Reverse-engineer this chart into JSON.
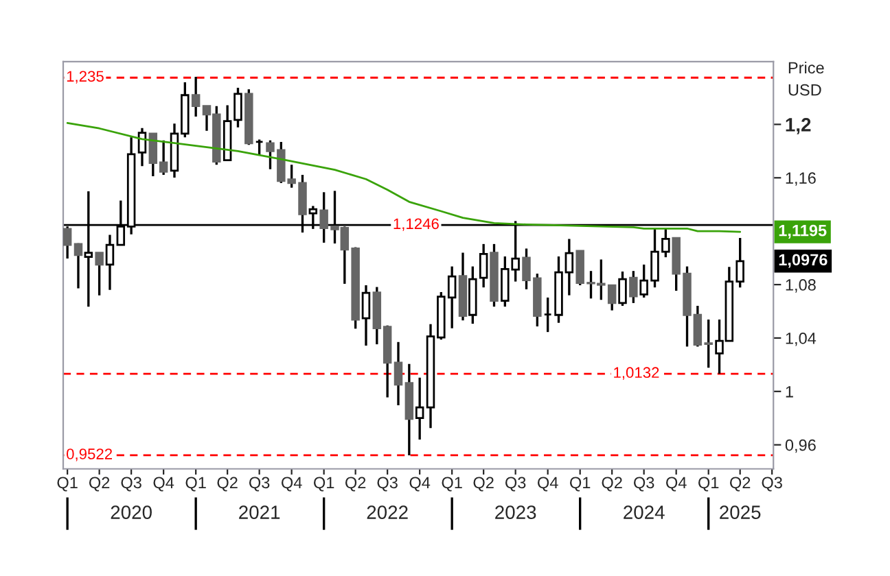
{
  "chart_data": {
    "type": "candlestick",
    "ylabel": "Price\nUSD",
    "x": [
      "2020-01",
      "2020-02",
      "2020-03",
      "2020-04",
      "2020-05",
      "2020-06",
      "2020-07",
      "2020-08",
      "2020-09",
      "2020-10",
      "2020-11",
      "2020-12",
      "2021-01",
      "2021-02",
      "2021-03",
      "2021-04",
      "2021-05",
      "2021-06",
      "2021-07",
      "2021-08",
      "2021-09",
      "2021-10",
      "2021-11",
      "2021-12",
      "2022-01",
      "2022-02",
      "2022-03",
      "2022-04",
      "2022-05",
      "2022-06",
      "2022-07",
      "2022-08",
      "2022-09",
      "2022-10",
      "2022-11",
      "2022-12",
      "2023-01",
      "2023-02",
      "2023-03",
      "2023-04",
      "2023-05",
      "2023-06",
      "2023-07",
      "2023-08",
      "2023-09",
      "2023-10",
      "2023-11",
      "2023-12",
      "2024-01",
      "2024-02",
      "2024-03",
      "2024-04",
      "2024-05",
      "2024-06",
      "2024-07",
      "2024-08",
      "2024-09",
      "2024-10",
      "2024-11",
      "2024-12",
      "2025-01",
      "2025-02",
      "2025-03",
      "2025-04"
    ],
    "ohlc": [
      [
        1.1217,
        1.1235,
        1.0995,
        1.1098
      ],
      [
        1.1104,
        1.111,
        1.0772,
        1.1022
      ],
      [
        1.1008,
        1.1499,
        1.0635,
        1.1039
      ],
      [
        1.1039,
        1.1039,
        1.072,
        1.095
      ],
      [
        1.095,
        1.1173,
        1.0761,
        1.1098
      ],
      [
        1.1098,
        1.143,
        1.1098,
        1.1235
      ],
      [
        1.1235,
        1.1903,
        1.1176,
        1.1777
      ],
      [
        1.179,
        1.1972,
        1.1687,
        1.1937
      ],
      [
        1.1931,
        1.1931,
        1.1612,
        1.1711
      ],
      [
        1.1715,
        1.188,
        1.1622,
        1.1646
      ],
      [
        1.1653,
        1.2006,
        1.1602,
        1.1931
      ],
      [
        1.1931,
        1.2315,
        1.1903,
        1.2219
      ],
      [
        1.2219,
        1.2356,
        1.2058,
        1.2137
      ],
      [
        1.2137,
        1.214,
        1.1952,
        1.2075
      ],
      [
        1.2075,
        1.2137,
        1.1698,
        1.1721
      ],
      [
        1.1732,
        1.2143,
        1.1725,
        1.2024
      ],
      [
        1.2034,
        1.2274,
        1.1978,
        1.2229
      ],
      [
        1.2229,
        1.2263,
        1.1847,
        1.1859
      ],
      [
        1.1869,
        1.1886,
        1.1766,
        1.1869
      ],
      [
        1.1859,
        1.188,
        1.1664,
        1.18
      ],
      [
        1.1808,
        1.1869,
        1.1561,
        1.1577
      ],
      [
        1.1588,
        1.1698,
        1.1526,
        1.1561
      ],
      [
        1.1561,
        1.1622,
        1.119,
        1.1327
      ],
      [
        1.1334,
        1.1389,
        1.1217,
        1.1365
      ],
      [
        1.1355,
        1.1492,
        1.1114,
        1.1224
      ],
      [
        1.1235,
        1.1502,
        1.1108,
        1.1214
      ],
      [
        1.1224,
        1.1235,
        1.0806,
        1.1063
      ],
      [
        1.107,
        1.108,
        1.047,
        1.0538
      ],
      [
        1.0548,
        1.0795,
        1.0343,
        1.0738
      ],
      [
        1.0741,
        1.0782,
        1.0353,
        1.0473
      ],
      [
        1.0484,
        1.0494,
        0.9956,
        1.0216
      ],
      [
        1.0216,
        1.037,
        0.9897,
        1.0051
      ],
      [
        1.0062,
        1.0206,
        0.9522,
        0.9794
      ],
      [
        0.9801,
        1.0103,
        0.964,
        0.988
      ],
      [
        0.988,
        1.0504,
        0.9725,
        1.0412
      ],
      [
        1.0404,
        1.0744,
        1.0388,
        1.071
      ],
      [
        1.0703,
        1.0936,
        1.0473,
        1.0861
      ],
      [
        1.0864,
        1.1039,
        1.0532,
        1.0566
      ],
      [
        1.0573,
        1.0936,
        1.0507,
        1.0841
      ],
      [
        1.0851,
        1.1104,
        1.0779,
        1.1029
      ],
      [
        1.1039,
        1.1104,
        1.0635,
        1.0679
      ],
      [
        1.0679,
        1.1011,
        1.0635,
        1.0916
      ],
      [
        1.0913,
        1.1276,
        1.0823,
        1.0995
      ],
      [
        1.1001,
        1.107,
        1.0765,
        1.0833
      ],
      [
        1.0847,
        1.0882,
        1.0487,
        1.0566
      ],
      [
        1.0576,
        1.0703,
        1.0445,
        1.0576
      ],
      [
        1.0573,
        1.1011,
        1.0514,
        1.0892
      ],
      [
        1.0892,
        1.1142,
        1.072,
        1.1036
      ],
      [
        1.1052,
        1.1052,
        1.0795,
        1.0813
      ],
      [
        1.0813,
        1.0902,
        1.0696,
        1.081
      ],
      [
        1.0806,
        1.0988,
        1.0686,
        1.0799
      ],
      [
        1.0795,
        1.08,
        1.0607,
        1.0662
      ],
      [
        1.0662,
        1.0898,
        1.0641,
        1.0841
      ],
      [
        1.0851,
        1.0902,
        1.0662,
        1.0713
      ],
      [
        1.0727,
        1.095,
        1.0703,
        1.083
      ],
      [
        1.083,
        1.1217,
        1.0779,
        1.1046
      ],
      [
        1.1046,
        1.1217,
        1.1005,
        1.1142
      ],
      [
        1.1149,
        1.1149,
        1.0754,
        1.0882
      ],
      [
        1.0882,
        1.0936,
        1.0336,
        1.0573
      ],
      [
        1.0573,
        1.0641,
        1.0336,
        1.035
      ],
      [
        1.036,
        1.0538,
        1.0178,
        1.0355
      ],
      [
        1.0285,
        1.0538,
        1.0132,
        1.0378
      ],
      [
        1.0378,
        1.0933,
        1.0378,
        1.0823
      ],
      [
        1.0823,
        1.1149,
        1.0779,
        1.0976
      ]
    ],
    "series": [
      {
        "type": "line",
        "color": "#3aa30a",
        "x": [
          "2020-01",
          "2020-04",
          "2020-08",
          "2021-01",
          "2021-05",
          "2021-09",
          "2022-02",
          "2022-05",
          "2022-07",
          "2022-09",
          "2022-12",
          "2023-02",
          "2023-05",
          "2023-08",
          "2023-10",
          "2024-01",
          "2024-06",
          "2024-07",
          "2024-11",
          "2024-12",
          "2025-02",
          "2025-04"
        ],
        "values": [
          1.201,
          1.197,
          1.189,
          1.184,
          1.18,
          1.174,
          1.166,
          1.159,
          1.151,
          1.142,
          1.135,
          1.13,
          1.126,
          1.125,
          1.1246,
          1.124,
          1.123,
          1.122,
          1.122,
          1.12,
          1.12,
          1.1195
        ]
      }
    ],
    "ref_lines": [
      {
        "axis": "y",
        "value": 1.235,
        "label": "1,235",
        "color": "#ff0000",
        "line_style": "dashed"
      },
      {
        "axis": "y",
        "value": 1.1246,
        "label": "1,1246",
        "color": "#000000",
        "line_style": "solid"
      },
      {
        "axis": "y",
        "value": 1.0132,
        "label": "1,0132",
        "color": "#ff0000",
        "line_style": "dashed"
      },
      {
        "axis": "y",
        "value": 0.9522,
        "label": "0,9522",
        "color": "#ff0000",
        "line_style": "dashed"
      }
    ],
    "annotations": [
      {
        "text": "1,1195",
        "x": "2025-04",
        "y": 1.1195
      },
      {
        "text": "1,0976",
        "x": "2025-04",
        "y": 1.0976
      }
    ],
    "xlim": [
      "2019-12-20",
      "2025-07-05"
    ],
    "ylim": [
      0.942,
      1.247
    ],
    "yticks": [
      {
        "value": 0.96,
        "label": "0,96"
      },
      {
        "value": 1,
        "label": "1"
      },
      {
        "value": 1.04,
        "label": "1,04"
      },
      {
        "value": 1.08,
        "label": "1,08"
      },
      {
        "value": 1.16,
        "label": "1,16"
      },
      {
        "value": 1.2,
        "label": "1,2"
      }
    ],
    "xticks": [
      {
        "value": "2020-01",
        "label": "Q1"
      },
      {
        "value": "2020-04",
        "label": "Q2"
      },
      {
        "value": "2020-07",
        "label": "Q3"
      },
      {
        "value": "2020-10",
        "label": "Q4"
      },
      {
        "value": "2021-01",
        "label": "Q1"
      },
      {
        "value": "2021-04",
        "label": "Q2"
      },
      {
        "value": "2021-07",
        "label": "Q3"
      },
      {
        "value": "2021-10",
        "label": "Q4"
      },
      {
        "value": "2022-01",
        "label": "Q1"
      },
      {
        "value": "2022-04",
        "label": "Q2"
      },
      {
        "value": "2022-07",
        "label": "Q3"
      },
      {
        "value": "2022-10",
        "label": "Q4"
      },
      {
        "value": "2023-01",
        "label": "Q1"
      },
      {
        "value": "2023-04",
        "label": "Q2"
      },
      {
        "value": "2023-07",
        "label": "Q3"
      },
      {
        "value": "2023-10",
        "label": "Q4"
      },
      {
        "value": "2024-01",
        "label": "Q1"
      },
      {
        "value": "2024-04",
        "label": "Q2"
      },
      {
        "value": "2024-07",
        "label": "Q3"
      },
      {
        "value": "2024-10",
        "label": "Q4"
      },
      {
        "value": "2025-01",
        "label": "Q1"
      },
      {
        "value": "2025-04",
        "label": "Q2"
      },
      {
        "value": "2025-07",
        "label": "Q3"
      }
    ],
    "x2lim": [
      "2019-12-20",
      "2025-07-05"
    ],
    "x2ticks": [
      {
        "value": "2020-01",
        "label": null
      },
      {
        "value": "2020-07",
        "label": "2020"
      },
      {
        "value": "2021-01",
        "label": null
      },
      {
        "value": "2021-07",
        "label": "2021"
      },
      {
        "value": "2022-01",
        "label": null
      },
      {
        "value": "2022-07",
        "label": "2022"
      },
      {
        "value": "2023-01",
        "label": null
      },
      {
        "value": "2023-07",
        "label": "2023"
      },
      {
        "value": "2024-01",
        "label": null
      },
      {
        "value": "2024-07",
        "label": "2024"
      },
      {
        "value": "2025-01",
        "label": null
      },
      {
        "value": "2025-04",
        "label": "2025"
      }
    ],
    "grid": false,
    "legend": false
  }
}
